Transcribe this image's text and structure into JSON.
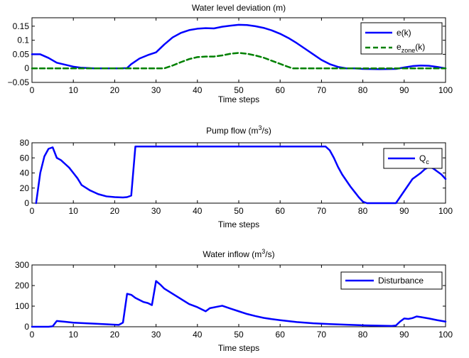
{
  "colors": {
    "blue": "#0000ff",
    "green": "#008000",
    "axis": "#000000"
  },
  "chart_data": [
    {
      "type": "line",
      "title": "Water level deviation (m)",
      "xlabel": "Time steps",
      "ylabel": "",
      "xlim": [
        0,
        100
      ],
      "ylim": [
        -0.05,
        0.18
      ],
      "xticks": [
        0,
        10,
        20,
        30,
        40,
        50,
        60,
        70,
        80,
        90,
        100
      ],
      "yticks": [
        -0.05,
        0,
        0.05,
        0.1,
        0.15
      ],
      "ytick_labels": [
        "−0.05",
        "0",
        "0.05",
        "0.1",
        "0.15"
      ],
      "grid": false,
      "legend": "top-right",
      "series": [
        {
          "name": "e(k)",
          "color": "#0000ff",
          "style": "solid",
          "x": [
            0,
            2,
            4,
            6,
            8,
            10,
            12,
            15,
            18,
            21,
            23,
            24,
            26,
            28,
            30,
            32,
            34,
            36,
            38,
            40,
            42,
            44,
            46,
            48,
            50,
            52,
            54,
            56,
            58,
            60,
            62,
            64,
            66,
            68,
            70,
            72,
            74,
            76,
            78,
            80,
            84,
            88,
            90,
            92,
            94,
            96,
            98,
            100
          ],
          "y": [
            0.05,
            0.05,
            0.037,
            0.02,
            0.013,
            0.006,
            0.002,
            0.0,
            0.0,
            0.0,
            0.001,
            0.015,
            0.035,
            0.047,
            0.057,
            0.085,
            0.11,
            0.126,
            0.136,
            0.141,
            0.143,
            0.142,
            0.148,
            0.152,
            0.155,
            0.154,
            0.15,
            0.144,
            0.135,
            0.123,
            0.108,
            0.09,
            0.07,
            0.05,
            0.03,
            0.015,
            0.005,
            0.0,
            0.0,
            -0.002,
            -0.003,
            -0.002,
            0.003,
            0.008,
            0.01,
            0.009,
            0.005,
            0.0
          ]
        },
        {
          "name": "e_zone(k)",
          "color": "#008000",
          "style": "dashed",
          "x": [
            0,
            10,
            20,
            30,
            32,
            34,
            36,
            38,
            40,
            42,
            44,
            46,
            48,
            50,
            52,
            54,
            56,
            58,
            60,
            62,
            63,
            70,
            80,
            90,
            100
          ],
          "y": [
            0,
            0,
            0,
            0,
            0,
            0.01,
            0.022,
            0.033,
            0.04,
            0.042,
            0.042,
            0.046,
            0.052,
            0.055,
            0.052,
            0.046,
            0.038,
            0.027,
            0.016,
            0.005,
            0,
            0,
            0,
            0,
            0
          ]
        }
      ]
    },
    {
      "type": "line",
      "title": "Pump flow (m³/s)",
      "xlabel": "Time steps",
      "ylabel": "",
      "xlim": [
        0,
        100
      ],
      "ylim": [
        0,
        80
      ],
      "xticks": [
        0,
        10,
        20,
        30,
        40,
        50,
        60,
        70,
        80,
        90,
        100
      ],
      "yticks": [
        0,
        20,
        40,
        60,
        80
      ],
      "ytick_labels": [
        "0",
        "20",
        "40",
        "60",
        "80"
      ],
      "grid": false,
      "legend": "top-right",
      "series": [
        {
          "name": "Q_c",
          "color": "#0000ff",
          "style": "solid",
          "x": [
            1,
            2,
            3,
            4,
            5,
            6,
            7,
            8,
            9,
            10,
            11,
            12,
            14,
            16,
            18,
            20,
            22,
            23,
            24,
            25,
            30,
            40,
            50,
            60,
            70,
            71,
            72,
            73,
            74,
            75,
            76,
            77,
            78,
            79,
            80,
            81,
            82,
            84,
            86,
            88,
            89,
            90,
            91,
            92,
            93,
            94,
            95,
            96,
            97,
            98,
            99,
            100
          ],
          "y": [
            0,
            40,
            62,
            72,
            74,
            60,
            57,
            52,
            47,
            40,
            33,
            24,
            17,
            12,
            9,
            8,
            7.5,
            8,
            10,
            75,
            75,
            75,
            75,
            75,
            75,
            75,
            70,
            60,
            48,
            38,
            30,
            22,
            15,
            8,
            2,
            0,
            0,
            0,
            0,
            0,
            8,
            16,
            24,
            32,
            36,
            40,
            45,
            48,
            46,
            42,
            38,
            32
          ]
        }
      ]
    },
    {
      "type": "line",
      "title": "Water inflow (m³/s)",
      "xlabel": "Time steps",
      "ylabel": "",
      "xlim": [
        0,
        100
      ],
      "ylim": [
        0,
        300
      ],
      "xticks": [
        0,
        10,
        20,
        30,
        40,
        50,
        60,
        70,
        80,
        90,
        100
      ],
      "yticks": [
        0,
        100,
        200,
        300
      ],
      "ytick_labels": [
        "0",
        "100",
        "200",
        "300"
      ],
      "grid": false,
      "legend": "top-right",
      "series": [
        {
          "name": "Disturbance",
          "color": "#0000ff",
          "style": "solid",
          "x": [
            0,
            4,
            5,
            6,
            8,
            10,
            14,
            18,
            20,
            21,
            22,
            23,
            24,
            25,
            27,
            28,
            29,
            30,
            31,
            32,
            34,
            36,
            38,
            40,
            42,
            43,
            45,
            46,
            48,
            50,
            52,
            54,
            56,
            58,
            60,
            64,
            68,
            72,
            76,
            80,
            84,
            87,
            88,
            89,
            90,
            91,
            92,
            93,
            94,
            96,
            98,
            100
          ],
          "y": [
            0,
            0,
            2,
            28,
            24,
            20,
            16,
            12,
            10,
            9,
            20,
            160,
            155,
            140,
            120,
            115,
            105,
            222,
            205,
            185,
            160,
            135,
            110,
            95,
            75,
            90,
            98,
            102,
            88,
            75,
            62,
            52,
            43,
            37,
            32,
            23,
            17,
            13,
            10,
            7,
            5,
            4,
            6,
            25,
            40,
            38,
            42,
            50,
            47,
            40,
            32,
            25
          ]
        }
      ]
    }
  ]
}
